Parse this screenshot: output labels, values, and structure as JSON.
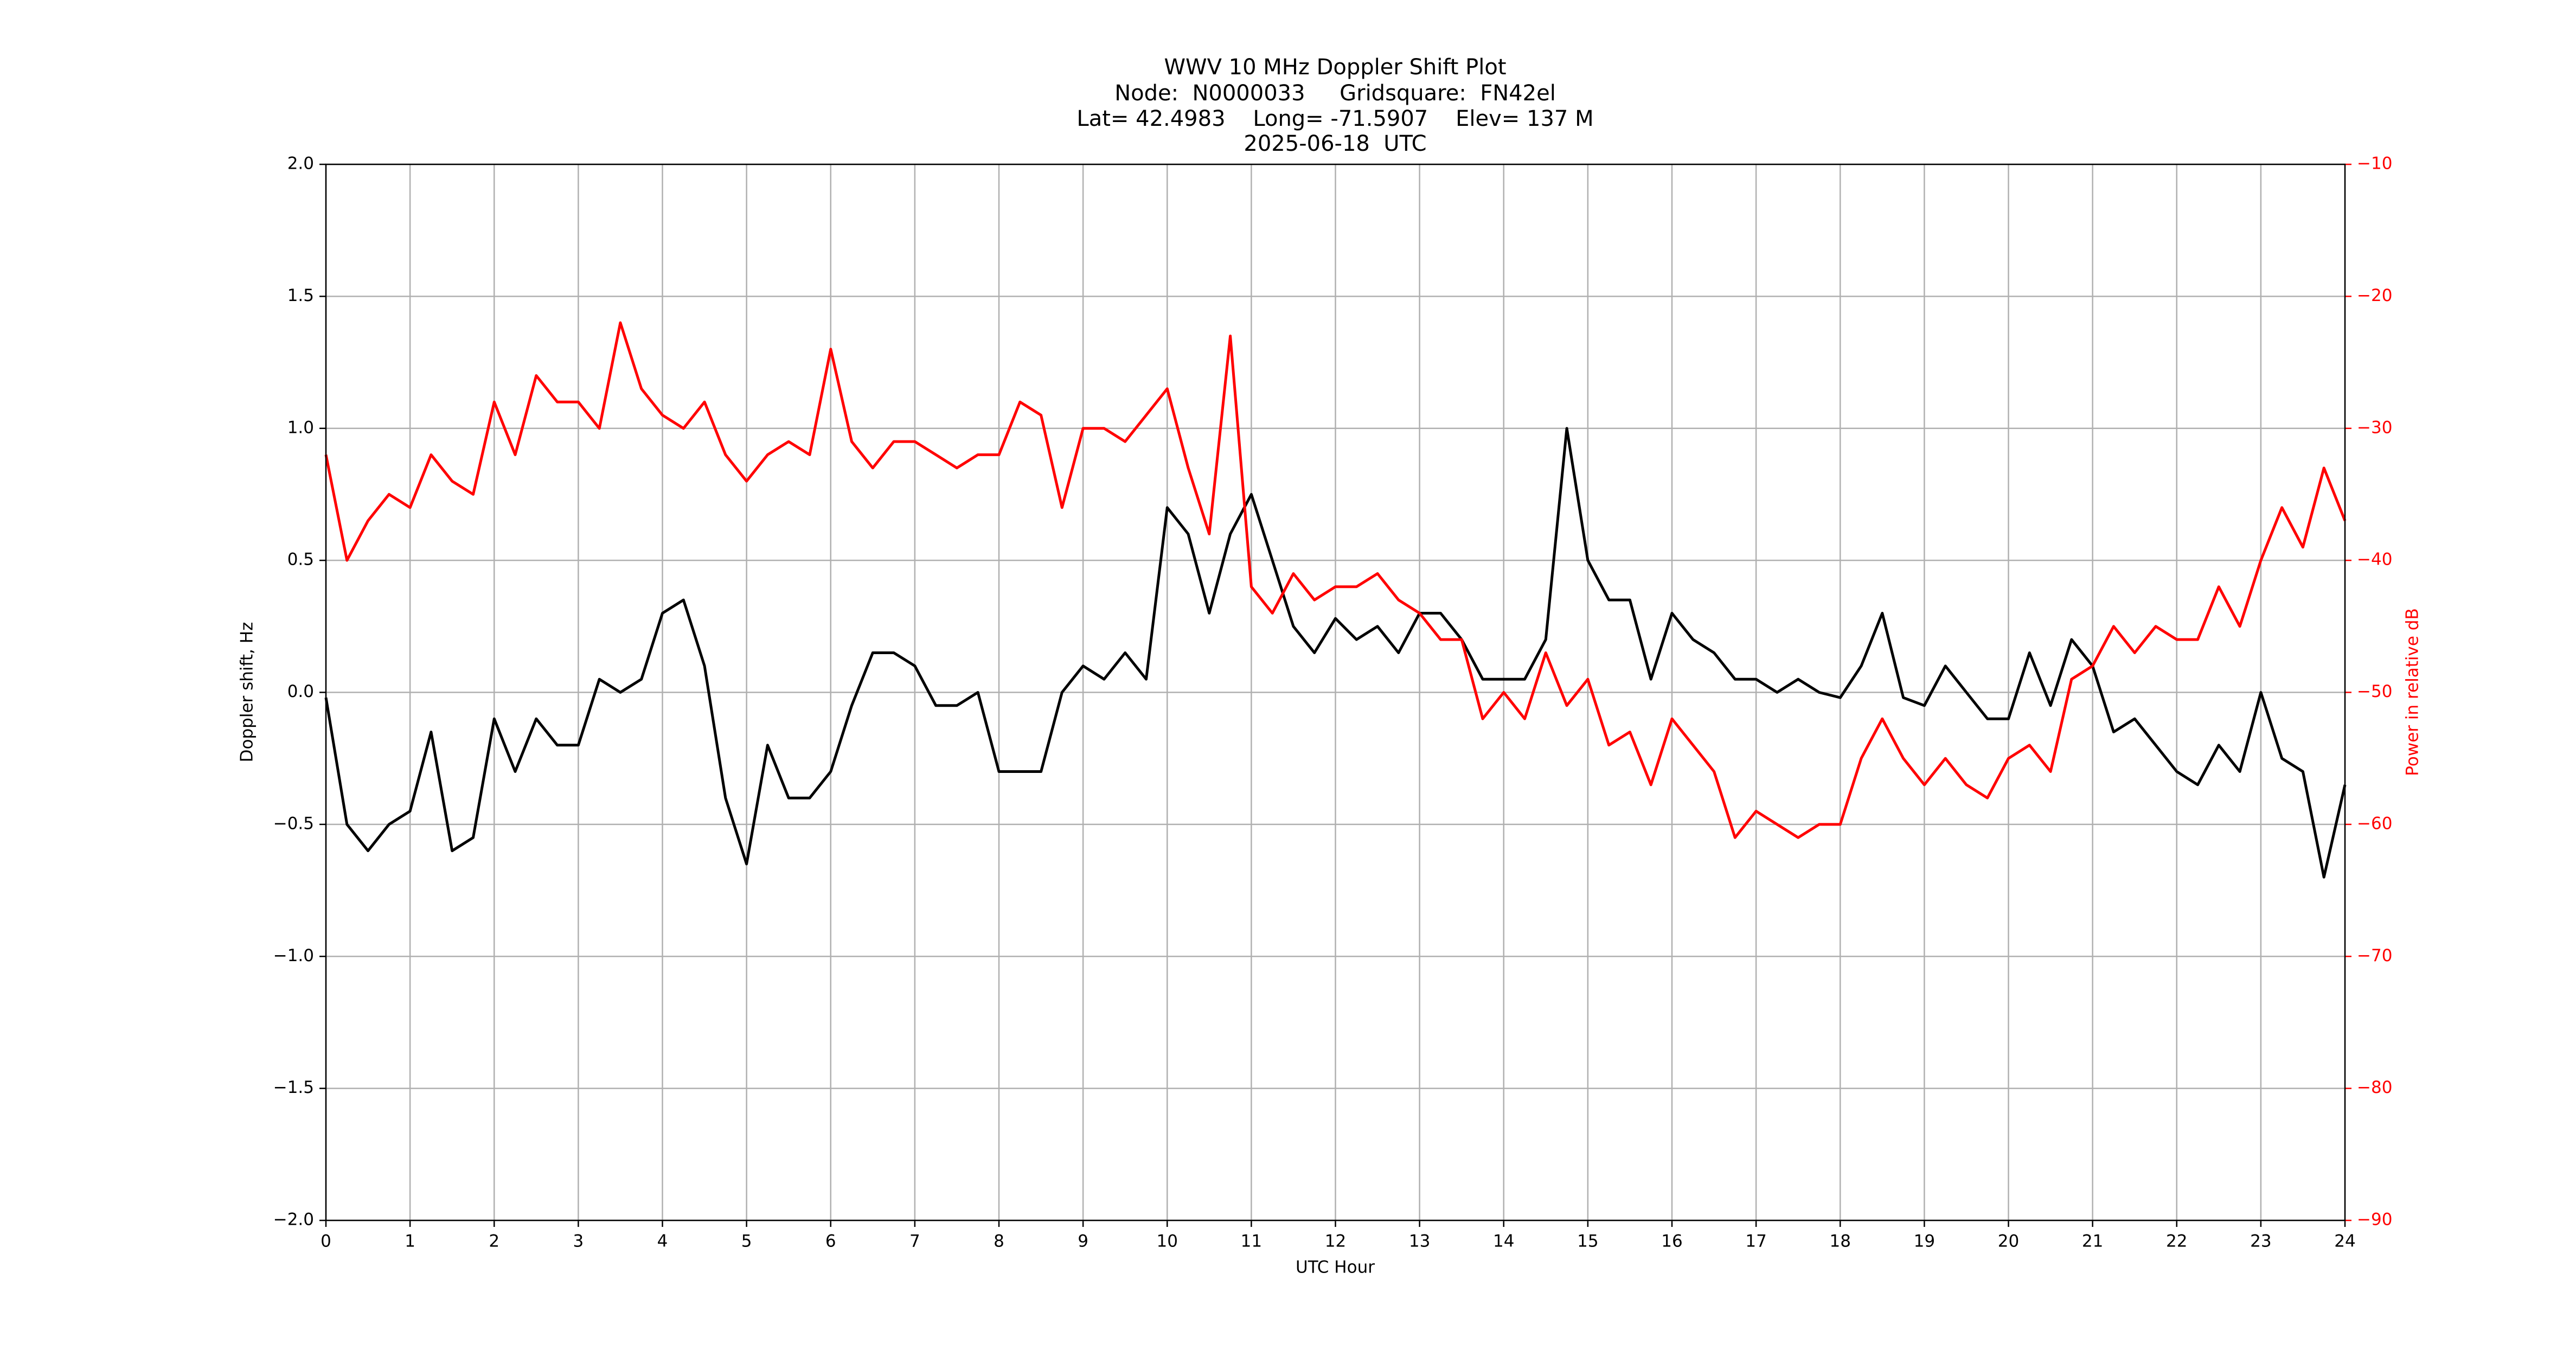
{
  "chart_data": {
    "type": "line",
    "title": [
      "WWV 10 MHz Doppler Shift Plot",
      "Node:  N0000033     Gridsquare:  FN42el",
      "Lat= 42.4983    Long= -71.5907    Elev= 137 M",
      "2025-06-18  UTC"
    ],
    "x_label": "UTC Hour",
    "y_label": "Doppler shift, Hz",
    "y2_label": "Power in relative dB",
    "x": [
      0,
      0.25,
      0.5,
      0.75,
      1,
      1.25,
      1.5,
      1.75,
      2,
      2.25,
      2.5,
      2.75,
      3,
      3.25,
      3.5,
      3.75,
      4,
      4.25,
      4.5,
      4.75,
      5,
      5.25,
      5.5,
      5.75,
      6,
      6.25,
      6.5,
      6.75,
      7,
      7.25,
      7.5,
      7.75,
      8,
      8.25,
      8.5,
      8.75,
      9,
      9.25,
      9.5,
      9.75,
      10,
      10.25,
      10.5,
      10.75,
      11,
      11.25,
      11.5,
      11.75,
      12,
      12.25,
      12.5,
      12.75,
      13,
      13.25,
      13.5,
      13.75,
      14,
      14.25,
      14.5,
      14.75,
      15,
      15.25,
      15.5,
      15.75,
      16,
      16.25,
      16.5,
      16.75,
      17,
      17.25,
      17.5,
      17.75,
      18,
      18.25,
      18.5,
      18.75,
      19,
      19.25,
      19.5,
      19.75,
      20,
      20.25,
      20.5,
      20.75,
      21,
      21.25,
      21.5,
      21.75,
      22,
      22.25,
      22.5,
      22.75,
      23,
      23.25,
      23.5,
      23.75,
      24
    ],
    "series": [
      {
        "name": "Doppler shift",
        "color": "#000000",
        "axis": "y",
        "values": [
          -0.02,
          -0.5,
          -0.6,
          -0.5,
          -0.45,
          -0.15,
          -0.6,
          -0.55,
          -0.1,
          -0.3,
          -0.1,
          -0.2,
          -0.2,
          0.05,
          0,
          0.05,
          0.3,
          0.35,
          0.1,
          -0.4,
          -0.65,
          -0.2,
          -0.4,
          -0.4,
          -0.3,
          -0.05,
          0.15,
          0.15,
          0.1,
          -0.05,
          -0.05,
          0,
          -0.3,
          -0.3,
          -0.3,
          0,
          0.1,
          0.05,
          0.15,
          0.05,
          0.7,
          0.6,
          0.3,
          0.6,
          0.75,
          0.5,
          0.25,
          0.15,
          0.28,
          0.2,
          0.25,
          0.15,
          0.3,
          0.3,
          0.2,
          0.05,
          0.05,
          0.05,
          0.2,
          1.0,
          0.5,
          0.35,
          0.35,
          0.05,
          0.3,
          0.2,
          0.15,
          0.05,
          0.05,
          0,
          0.05,
          0,
          -0.02,
          0.1,
          0.3,
          -0.02,
          -0.05,
          0.1,
          0,
          -0.1,
          -0.1,
          0.15,
          -0.05,
          0.2,
          0.1,
          -0.15,
          -0.1,
          -0.2,
          -0.3,
          -0.35,
          -0.2,
          -0.3,
          0,
          -0.25,
          -0.3,
          -0.7,
          -0.35
        ]
      },
      {
        "name": "Power",
        "color": "#ff0000",
        "axis": "y2",
        "values": [
          -32,
          -40,
          -37,
          -35,
          -36,
          -32,
          -34,
          -35,
          -28,
          -32,
          -26,
          -28,
          -28,
          -30,
          -22,
          -27,
          -29,
          -30,
          -28,
          -32,
          -34,
          -32,
          -31,
          -32,
          -24,
          -31,
          -33,
          -31,
          -31,
          -32,
          -33,
          -32,
          -32,
          -28,
          -29,
          -36,
          -30,
          -30,
          -31,
          -29,
          -27,
          -33,
          -38,
          -23,
          -42,
          -44,
          -41,
          -43,
          -42,
          -42,
          -41,
          -43,
          -44,
          -46,
          -46,
          -52,
          -50,
          -52,
          -47,
          -51,
          -49,
          -54,
          -53,
          -57,
          -52,
          -54,
          -56,
          -61,
          -59,
          -60,
          -61,
          -60,
          -60,
          -55,
          -52,
          -55,
          -57,
          -55,
          -57,
          -58,
          -55,
          -54,
          -56,
          -49,
          -48,
          -45,
          -47,
          -45,
          -46,
          -46,
          -42,
          -45,
          -40,
          -36,
          -39,
          -33,
          -37
        ]
      }
    ],
    "xlim": [
      0,
      24
    ],
    "xticks": [
      0,
      1,
      2,
      3,
      4,
      5,
      6,
      7,
      8,
      9,
      10,
      11,
      12,
      13,
      14,
      15,
      16,
      17,
      18,
      19,
      20,
      21,
      22,
      23,
      24
    ],
    "ylim": [
      -2,
      2
    ],
    "yticks": [
      {
        "value": -2,
        "label": "−2.0"
      },
      {
        "value": -1.5,
        "label": "−1.5"
      },
      {
        "value": -1,
        "label": "−1.0"
      },
      {
        "value": -0.5,
        "label": "−0.5"
      },
      {
        "value": 0,
        "label": "0.0"
      },
      {
        "value": 0.5,
        "label": "0.5"
      },
      {
        "value": 1,
        "label": "1.0"
      },
      {
        "value": 1.5,
        "label": "1.5"
      },
      {
        "value": 2,
        "label": "2.0"
      }
    ],
    "y2lim": [
      -90,
      -10
    ],
    "y2ticks": [
      {
        "value": -90,
        "label": "−90"
      },
      {
        "value": -80,
        "label": "−80"
      },
      {
        "value": -70,
        "label": "−70"
      },
      {
        "value": -60,
        "label": "−60"
      },
      {
        "value": -50,
        "label": "−50"
      },
      {
        "value": -40,
        "label": "−40"
      },
      {
        "value": -30,
        "label": "−30"
      },
      {
        "value": -20,
        "label": "−20"
      },
      {
        "value": -10,
        "label": "−10"
      }
    ],
    "y2_color": "#ff0000",
    "grid": true
  }
}
